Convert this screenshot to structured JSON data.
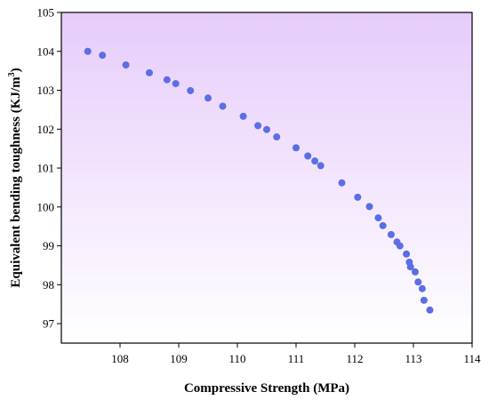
{
  "chart_data": {
    "type": "scatter",
    "xlabel": "Compressive Strength  (MPa)",
    "ylabel_main": "Equivalent bending toughness (KJ/m",
    "ylabel_sup": "3",
    "ylabel_close": ")",
    "xlim": [
      107,
      114
    ],
    "ylim": [
      96.5,
      105
    ],
    "xticks": [
      108,
      109,
      110,
      111,
      112,
      113,
      114
    ],
    "yticks": [
      97,
      98,
      99,
      100,
      101,
      102,
      103,
      104,
      105
    ],
    "colors": {
      "marker": "#5b6ee6",
      "gradient_top": "#e6ccfb",
      "gradient_bottom": "#ffffff"
    },
    "points": [
      {
        "x": 107.45,
        "y": 104.0
      },
      {
        "x": 107.7,
        "y": 103.9
      },
      {
        "x": 108.1,
        "y": 103.65
      },
      {
        "x": 108.5,
        "y": 103.45
      },
      {
        "x": 108.8,
        "y": 103.27
      },
      {
        "x": 108.95,
        "y": 103.17
      },
      {
        "x": 109.2,
        "y": 102.99
      },
      {
        "x": 109.5,
        "y": 102.8
      },
      {
        "x": 109.75,
        "y": 102.59
      },
      {
        "x": 110.1,
        "y": 102.33
      },
      {
        "x": 110.35,
        "y": 102.09
      },
      {
        "x": 110.5,
        "y": 101.99
      },
      {
        "x": 110.67,
        "y": 101.8
      },
      {
        "x": 111.0,
        "y": 101.52
      },
      {
        "x": 111.2,
        "y": 101.31
      },
      {
        "x": 111.32,
        "y": 101.18
      },
      {
        "x": 111.42,
        "y": 101.06
      },
      {
        "x": 111.78,
        "y": 100.62
      },
      {
        "x": 112.05,
        "y": 100.25
      },
      {
        "x": 112.25,
        "y": 100.01
      },
      {
        "x": 112.4,
        "y": 99.72
      },
      {
        "x": 112.48,
        "y": 99.52
      },
      {
        "x": 112.62,
        "y": 99.29
      },
      {
        "x": 112.72,
        "y": 99.1
      },
      {
        "x": 112.77,
        "y": 99.0
      },
      {
        "x": 112.88,
        "y": 98.79
      },
      {
        "x": 112.93,
        "y": 98.58
      },
      {
        "x": 112.95,
        "y": 98.46
      },
      {
        "x": 113.03,
        "y": 98.33
      },
      {
        "x": 113.08,
        "y": 98.07
      },
      {
        "x": 113.15,
        "y": 97.9
      },
      {
        "x": 113.18,
        "y": 97.6
      },
      {
        "x": 113.28,
        "y": 97.35
      }
    ]
  }
}
